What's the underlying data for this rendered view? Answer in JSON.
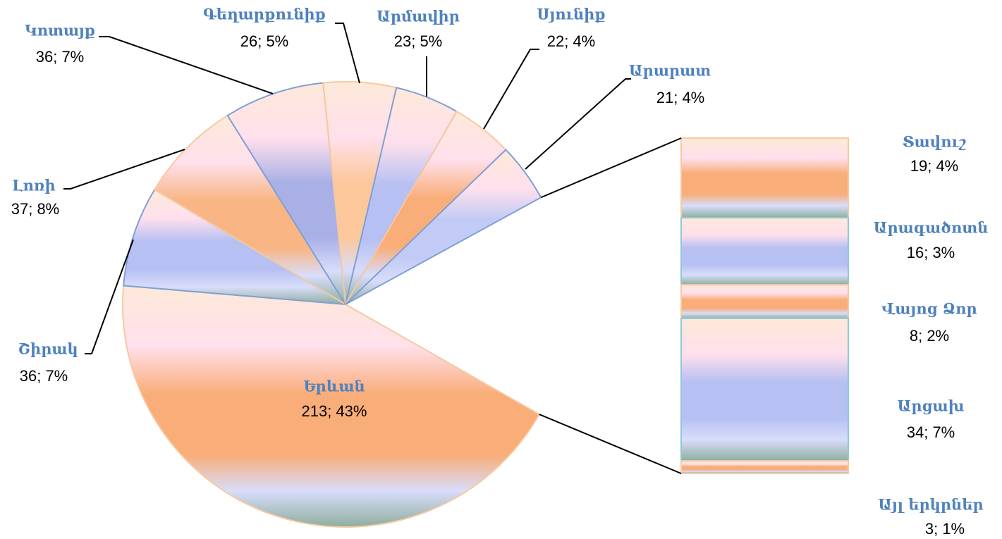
{
  "chart_data": {
    "type": "pie-of-bar",
    "categories": [
      "Երևան",
      "Շիրակ",
      "Լոռի",
      "Կոտայք",
      "Գեղարքունիք",
      "Արմավիր",
      "Սյունիք",
      "Արարատ"
    ],
    "values": [
      213,
      36,
      37,
      36,
      26,
      23,
      22,
      21
    ],
    "value_labels": [
      "213;  43%",
      "36; 7%",
      "37; 8%",
      "36; 7%",
      "26; 5%",
      "23; 5%",
      "22; 4%",
      "21; 4%"
    ],
    "colors": [
      "#f9ad78",
      "#b7c0f2",
      "#f9b583",
      "#a9b0e6",
      "#fcc79a",
      "#b7c0f2",
      "#f9ad78",
      "#c2cbf5"
    ],
    "bar": {
      "categories": [
        "Տավուշ",
        "Արագածոտն",
        "Վայոց Ձոր",
        "Արցախ",
        "Այլ երկրներ"
      ],
      "values": [
        19,
        16,
        8,
        34,
        3
      ],
      "value_labels": [
        "19; 4%",
        "16; 3%",
        "8; 2%",
        "34; 7%",
        "3; 1%"
      ],
      "colors": [
        "#f9ad78",
        "#b7c0f2",
        "#f9ad78",
        "#b7c0f2",
        "#f9ad78"
      ]
    }
  }
}
